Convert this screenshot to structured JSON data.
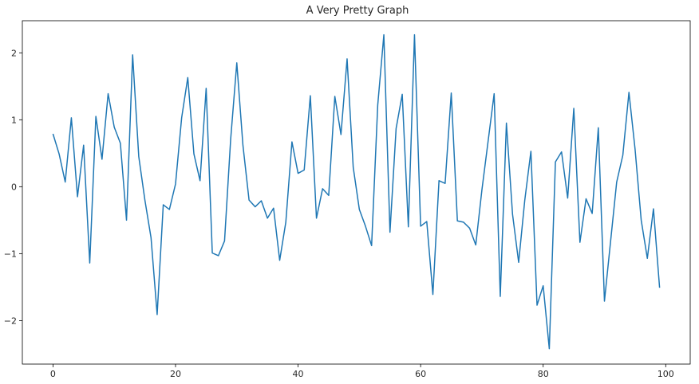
{
  "chart_data": {
    "type": "line",
    "title": "A Very Pretty Graph",
    "xlabel": "",
    "ylabel": "",
    "xlim": [
      -5,
      104
    ],
    "ylim": [
      -2.65,
      2.48
    ],
    "xticks": [
      0,
      20,
      40,
      60,
      80,
      100
    ],
    "xtick_labels": [
      "0",
      "20",
      "40",
      "60",
      "80",
      "100"
    ],
    "yticks": [
      -2,
      -1,
      0,
      1,
      2
    ],
    "ytick_labels": [
      "−2",
      "−1",
      "0",
      "1",
      "2"
    ],
    "grid": false,
    "line_color": "#1f77b4",
    "series": [
      {
        "x": [
          0,
          1,
          2,
          3,
          4,
          5,
          6,
          7,
          8,
          9,
          10,
          11,
          12,
          13,
          14,
          15,
          16,
          17,
          18,
          19,
          20,
          21,
          22,
          23,
          24,
          25,
          26,
          27,
          28,
          29,
          30,
          31,
          32,
          33,
          34,
          35,
          36,
          37,
          38,
          39,
          40,
          41,
          42,
          43,
          44,
          45,
          46,
          47,
          48,
          49,
          50,
          51,
          52,
          53,
          54,
          55,
          56,
          57,
          58,
          59,
          60,
          61,
          62,
          63,
          64,
          65,
          66,
          67,
          68,
          69,
          70,
          71,
          72,
          73,
          74,
          75,
          76,
          77,
          78,
          79,
          80,
          81,
          82,
          83,
          84,
          85,
          86,
          87,
          88,
          89,
          90,
          91,
          92,
          93,
          94,
          95,
          96,
          97,
          98,
          99
        ],
        "values": [
          0.79,
          0.49,
          0.07,
          1.03,
          -0.15,
          0.62,
          -1.14,
          1.05,
          0.41,
          1.39,
          0.89,
          0.65,
          -0.5,
          1.97,
          0.45,
          -0.2,
          -0.76,
          -1.91,
          -0.27,
          -0.34,
          0.04,
          1.03,
          1.63,
          0.49,
          0.09,
          1.47,
          -0.99,
          -1.03,
          -0.81,
          0.71,
          1.85,
          0.62,
          -0.2,
          -0.3,
          -0.21,
          -0.47,
          -0.32,
          -1.1,
          -0.53,
          0.67,
          0.2,
          0.25,
          1.36,
          -0.47,
          -0.03,
          -0.13,
          1.35,
          0.78,
          1.91,
          0.29,
          -0.34,
          -0.59,
          -0.88,
          1.22,
          2.27,
          -0.68,
          0.87,
          1.38,
          -0.6,
          2.27,
          -0.59,
          -0.52,
          -1.61,
          0.09,
          0.05,
          1.4,
          -0.51,
          -0.53,
          -0.62,
          -0.87,
          -0.05,
          0.67,
          1.39,
          -1.64,
          0.95,
          -0.41,
          -1.13,
          -0.2,
          0.53,
          -1.77,
          -1.48,
          -2.42,
          0.37,
          0.52,
          -0.17,
          1.17,
          -0.83,
          -0.18,
          -0.4,
          0.88,
          -1.71,
          -0.82,
          0.07,
          0.47,
          1.41,
          0.56,
          -0.5,
          -1.07,
          -0.33,
          -1.51
        ]
      }
    ]
  }
}
